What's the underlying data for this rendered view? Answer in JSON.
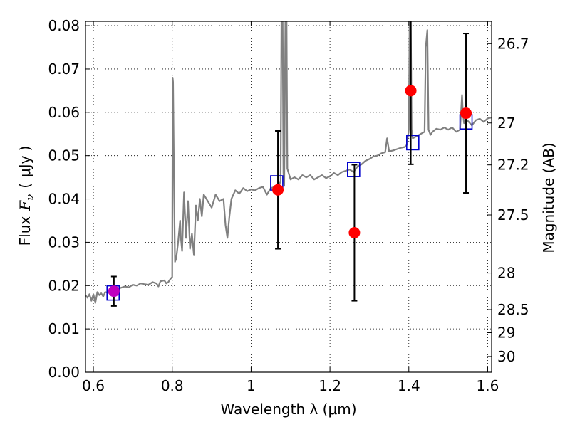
{
  "chart_data": {
    "type": "scatter",
    "xlabel": "Wavelength  λ (μm)",
    "ylabel_parts": [
      "Flux",
      "F",
      "ν",
      "(",
      "μJy",
      ")"
    ],
    "ylabel_right": "Magnitude (AB)",
    "xlim": [
      0.58,
      1.61
    ],
    "ylim": [
      0.0,
      0.081
    ],
    "grid": true,
    "x_ticks": [
      0.6,
      0.8,
      1.0,
      1.2,
      1.4,
      1.6
    ],
    "x_tick_labels": [
      "0.6",
      "0.8",
      "1",
      "1.2",
      "1.4",
      "1.6"
    ],
    "y_ticks": [
      0.0,
      0.01,
      0.02,
      0.03,
      0.04,
      0.05,
      0.06,
      0.07,
      0.08
    ],
    "y_tick_labels": [
      "0.00",
      "0.01",
      "0.02",
      "0.03",
      "0.04",
      "0.05",
      "0.06",
      "0.07",
      "0.08"
    ],
    "mag_ticks": [
      26.7,
      27,
      27.2,
      27.5,
      28,
      28.5,
      29,
      30
    ],
    "mag_tick_labels": [
      "26.7",
      "27",
      "27.2",
      "27.5",
      "28",
      "28.5",
      "29",
      "30"
    ],
    "series": [
      {
        "name": "model_spectrum",
        "kind": "line",
        "color": "#808080",
        "points": [
          [
            0.58,
            0.0178
          ],
          [
            0.585,
            0.0172
          ],
          [
            0.59,
            0.018
          ],
          [
            0.595,
            0.0165
          ],
          [
            0.6,
            0.018
          ],
          [
            0.605,
            0.016
          ],
          [
            0.61,
            0.0185
          ],
          [
            0.615,
            0.0178
          ],
          [
            0.62,
            0.0182
          ],
          [
            0.625,
            0.0175
          ],
          [
            0.63,
            0.0185
          ],
          [
            0.64,
            0.0183
          ],
          [
            0.65,
            0.0187
          ],
          [
            0.66,
            0.0192
          ],
          [
            0.67,
            0.0195
          ],
          [
            0.68,
            0.0198
          ],
          [
            0.69,
            0.0196
          ],
          [
            0.7,
            0.0202
          ],
          [
            0.71,
            0.02
          ],
          [
            0.72,
            0.0205
          ],
          [
            0.73,
            0.0203
          ],
          [
            0.74,
            0.0202
          ],
          [
            0.75,
            0.0208
          ],
          [
            0.76,
            0.0205
          ],
          [
            0.765,
            0.0198
          ],
          [
            0.77,
            0.021
          ],
          [
            0.78,
            0.0212
          ],
          [
            0.785,
            0.0205
          ],
          [
            0.79,
            0.0208
          ],
          [
            0.795,
            0.0215
          ],
          [
            0.8,
            0.022
          ],
          [
            0.801,
            0.068
          ],
          [
            0.802,
            0.067
          ],
          [
            0.805,
            0.04
          ],
          [
            0.807,
            0.0255
          ],
          [
            0.81,
            0.0262
          ],
          [
            0.815,
            0.03
          ],
          [
            0.82,
            0.035
          ],
          [
            0.822,
            0.031
          ],
          [
            0.825,
            0.028
          ],
          [
            0.83,
            0.0415
          ],
          [
            0.835,
            0.031
          ],
          [
            0.84,
            0.0395
          ],
          [
            0.845,
            0.0285
          ],
          [
            0.85,
            0.032
          ],
          [
            0.855,
            0.027
          ],
          [
            0.86,
            0.0385
          ],
          [
            0.865,
            0.035
          ],
          [
            0.87,
            0.04
          ],
          [
            0.875,
            0.036
          ],
          [
            0.88,
            0.041
          ],
          [
            0.89,
            0.0395
          ],
          [
            0.9,
            0.038
          ],
          [
            0.91,
            0.041
          ],
          [
            0.92,
            0.0395
          ],
          [
            0.93,
            0.04
          ],
          [
            0.935,
            0.034
          ],
          [
            0.94,
            0.031
          ],
          [
            0.945,
            0.036
          ],
          [
            0.95,
            0.04
          ],
          [
            0.96,
            0.042
          ],
          [
            0.97,
            0.0412
          ],
          [
            0.98,
            0.0425
          ],
          [
            0.99,
            0.0418
          ],
          [
            1.0,
            0.0422
          ],
          [
            1.01,
            0.042
          ],
          [
            1.02,
            0.0425
          ],
          [
            1.03,
            0.0428
          ],
          [
            1.04,
            0.041
          ],
          [
            1.05,
            0.0425
          ],
          [
            1.06,
            0.0428
          ],
          [
            1.07,
            0.0432
          ],
          [
            1.075,
            0.044
          ],
          [
            1.077,
            0.081
          ],
          [
            1.08,
            0.081
          ],
          [
            1.082,
            0.046
          ],
          [
            1.084,
            0.043
          ],
          [
            1.087,
            0.081
          ],
          [
            1.09,
            0.081
          ],
          [
            1.092,
            0.047
          ],
          [
            1.1,
            0.0445
          ],
          [
            1.11,
            0.045
          ],
          [
            1.12,
            0.0445
          ],
          [
            1.13,
            0.0455
          ],
          [
            1.14,
            0.045
          ],
          [
            1.15,
            0.0455
          ],
          [
            1.16,
            0.0445
          ],
          [
            1.17,
            0.045
          ],
          [
            1.18,
            0.0455
          ],
          [
            1.19,
            0.0448
          ],
          [
            1.2,
            0.0452
          ],
          [
            1.21,
            0.046
          ],
          [
            1.22,
            0.0455
          ],
          [
            1.23,
            0.0462
          ],
          [
            1.24,
            0.0465
          ],
          [
            1.25,
            0.0468
          ],
          [
            1.26,
            0.0462
          ],
          [
            1.27,
            0.0475
          ],
          [
            1.28,
            0.048
          ],
          [
            1.29,
            0.0488
          ],
          [
            1.3,
            0.0492
          ],
          [
            1.31,
            0.0498
          ],
          [
            1.32,
            0.05
          ],
          [
            1.33,
            0.0505
          ],
          [
            1.34,
            0.0508
          ],
          [
            1.345,
            0.054
          ],
          [
            1.35,
            0.051
          ],
          [
            1.36,
            0.0512
          ],
          [
            1.37,
            0.0515
          ],
          [
            1.38,
            0.0518
          ],
          [
            1.39,
            0.052
          ],
          [
            1.395,
            0.0525
          ],
          [
            1.4,
            0.056
          ],
          [
            1.402,
            0.081
          ],
          [
            1.405,
            0.081
          ],
          [
            1.407,
            0.056
          ],
          [
            1.41,
            0.054
          ],
          [
            1.42,
            0.0545
          ],
          [
            1.43,
            0.055
          ],
          [
            1.44,
            0.0555
          ],
          [
            1.443,
            0.075
          ],
          [
            1.447,
            0.079
          ],
          [
            1.45,
            0.056
          ],
          [
            1.455,
            0.0548
          ],
          [
            1.46,
            0.0555
          ],
          [
            1.47,
            0.0562
          ],
          [
            1.48,
            0.056
          ],
          [
            1.49,
            0.0565
          ],
          [
            1.5,
            0.056
          ],
          [
            1.51,
            0.0565
          ],
          [
            1.52,
            0.0555
          ],
          [
            1.53,
            0.056
          ],
          [
            1.535,
            0.064
          ],
          [
            1.537,
            0.06
          ],
          [
            1.54,
            0.0575
          ],
          [
            1.55,
            0.058
          ],
          [
            1.56,
            0.057
          ],
          [
            1.57,
            0.0582
          ],
          [
            1.58,
            0.0585
          ],
          [
            1.59,
            0.0578
          ],
          [
            1.6,
            0.0586
          ],
          [
            1.61,
            0.0588
          ]
        ]
      },
      {
        "name": "model_photometry",
        "kind": "marker",
        "marker": "open-square",
        "color": "#0000cc",
        "points": [
          [
            0.65,
            0.0183
          ],
          [
            1.065,
            0.0437
          ],
          [
            1.26,
            0.0468
          ],
          [
            1.41,
            0.053
          ],
          [
            1.545,
            0.0578
          ]
        ]
      },
      {
        "name": "observed_flux",
        "kind": "marker",
        "marker": "filled-circle",
        "color": "#ff0000",
        "points": [
          [
            1.068,
            0.0421,
            0.0136
          ],
          [
            1.262,
            0.0322,
            0.0157
          ],
          [
            1.405,
            0.065,
            0.017
          ],
          [
            1.545,
            0.0598,
            0.0184
          ]
        ]
      },
      {
        "name": "observed_flux_blue",
        "kind": "marker",
        "marker": "filled-circle",
        "color": "#bf00bf",
        "points": [
          [
            0.652,
            0.0187,
            0.0034
          ]
        ]
      }
    ]
  }
}
